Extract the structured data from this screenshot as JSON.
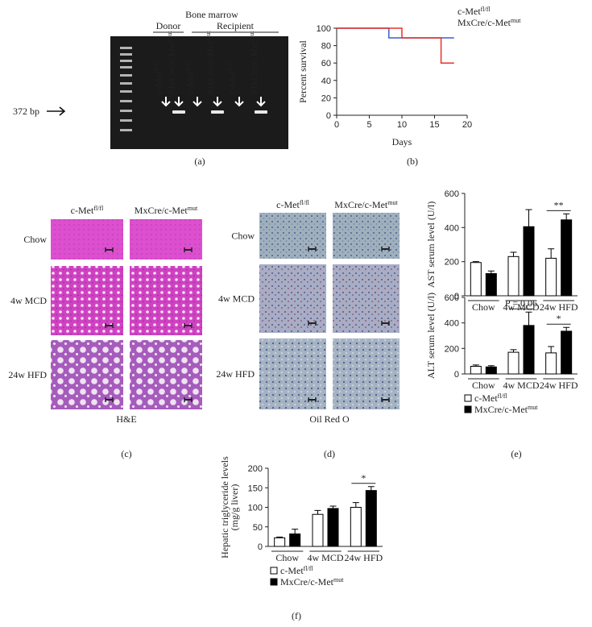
{
  "figure": {
    "a": {
      "label": "(a)",
      "title": "Bone marrow",
      "groups": [
        "Donor",
        "Recipient"
      ],
      "lanes": [
        {
          "text": "c-Met",
          "sup": "fl/fl"
        },
        {
          "text": "MxCre/c-Met",
          "sup": "mut"
        },
        {
          "text": "c-Met",
          "sup": "fl/fl"
        },
        {
          "text": "MxCre/c-Met",
          "sup": "mut"
        },
        {
          "text": "c-Met",
          "sup": "fl/fl"
        },
        {
          "text": "MxCre/c-Met",
          "sup": "mut"
        }
      ],
      "marker": "372 bp"
    },
    "b": {
      "label": "(b)"
    },
    "c": {
      "label": "(c)",
      "stain": "H&E",
      "columns": [
        {
          "text": "c-Met",
          "sup": "fl/fl"
        },
        {
          "text": "MxCre/c-Met",
          "sup": "mut"
        }
      ],
      "rows": [
        "Chow",
        "4w MCD",
        "24w HFD"
      ]
    },
    "d": {
      "label": "(d)",
      "stain": "Oil Red O",
      "columns": [
        {
          "text": "c-Met",
          "sup": "fl/fl"
        },
        {
          "text": "MxCre/c-Met",
          "sup": "mut"
        }
      ],
      "rows": [
        "Chow",
        "4w MCD",
        "24w HFD"
      ]
    },
    "e": {
      "label": "(e)"
    },
    "f": {
      "label": "(f)"
    }
  },
  "chart_data": [
    {
      "type": "line",
      "x_label": "Days",
      "y_label": "Percent survival",
      "xlim": [
        0,
        20
      ],
      "xticks": [
        0,
        5,
        10,
        15,
        20
      ],
      "ylim": [
        0,
        100
      ],
      "yticks": [
        0,
        20,
        40,
        60,
        80,
        100
      ],
      "legend": "top-right",
      "series": [
        {
          "name": {
            "text": "c-Met",
            "sup": "fl/fl"
          },
          "color": "#3b5fd0",
          "x": [
            0,
            8,
            8,
            18
          ],
          "values": [
            100,
            100,
            88.9,
            88.9
          ]
        },
        {
          "name": {
            "text": "MxCre/c-Met",
            "sup": "mut"
          },
          "color": "#e8312a",
          "x": [
            0,
            10,
            10,
            16,
            16,
            18
          ],
          "values": [
            100,
            100,
            88.9,
            88.9,
            60,
            60
          ]
        }
      ]
    },
    {
      "type": "bar",
      "y_label": "AST serum level (U/l)",
      "categories": [
        "Chow",
        "4w MCD",
        "24w HFD"
      ],
      "ylim": [
        0,
        600
      ],
      "yticks": [
        0,
        200,
        400,
        600
      ],
      "annotations": [
        "**"
      ],
      "series": [
        {
          "color": "#ffffff",
          "values": [
            195,
            230,
            220
          ],
          "errors": [
            5,
            25,
            55
          ]
        },
        {
          "color": "#000000",
          "values": [
            130,
            405,
            445
          ],
          "errors": [
            15,
            100,
            35
          ]
        }
      ]
    },
    {
      "type": "bar",
      "y_label": "ALT serum level (U/l)",
      "categories": [
        "Chow",
        "4w MCD",
        "24w HFD"
      ],
      "ylim": [
        0,
        600
      ],
      "yticks": [
        0,
        200,
        400,
        600
      ],
      "annotations": [
        "P = 0,06",
        "*"
      ],
      "legend": "bottom-left",
      "series": [
        {
          "name": {
            "text": "c-Met",
            "sup": "fl/fl"
          },
          "color": "#ffffff",
          "values": [
            60,
            170,
            165
          ],
          "errors": [
            10,
            20,
            50
          ]
        },
        {
          "name": {
            "text": "MxCre/c-Met",
            "sup": "mut"
          },
          "color": "#000000",
          "values": [
            55,
            380,
            335
          ],
          "errors": [
            10,
            105,
            30
          ]
        }
      ]
    },
    {
      "type": "bar",
      "y_label": [
        "Hepatic triglyceride levels",
        "(mg/g liver)"
      ],
      "categories": [
        "Chow",
        "4w MCD",
        "24w HFD"
      ],
      "ylim": [
        0,
        200
      ],
      "yticks": [
        0,
        50,
        100,
        150,
        200
      ],
      "annotations": [
        "*"
      ],
      "legend": "bottom-left",
      "series": [
        {
          "name": {
            "text": "c-Met",
            "sup": "fl/fl"
          },
          "color": "#ffffff",
          "values": [
            22,
            82,
            100
          ],
          "errors": [
            2,
            10,
            12
          ]
        },
        {
          "name": {
            "text": "MxCre/c-Met",
            "sup": "mut"
          },
          "color": "#000000",
          "values": [
            32,
            97,
            143
          ],
          "errors": [
            12,
            6,
            10
          ]
        }
      ]
    }
  ]
}
